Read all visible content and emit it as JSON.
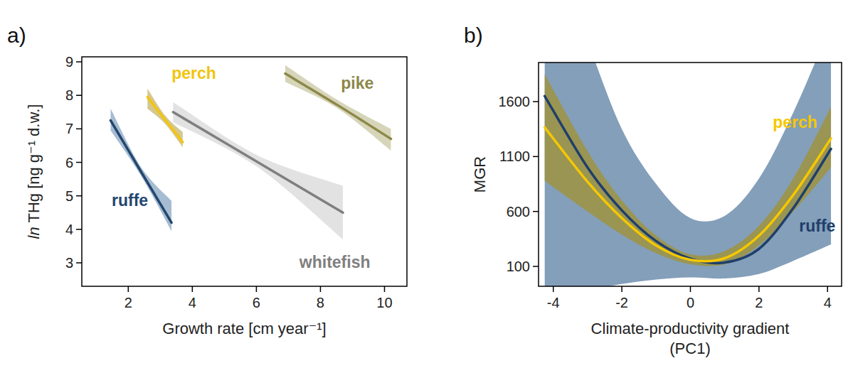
{
  "chart_data": [
    {
      "type": "line",
      "panel_label": "a)",
      "xlabel": "Growth rate [cm year⁻¹]",
      "ylabel": "ln THg [ng g⁻¹ d.w.]",
      "xlim": [
        0.55,
        10.7
      ],
      "ylim": [
        2.3,
        9.15
      ],
      "xticks": [
        2,
        4,
        6,
        8,
        10
      ],
      "yticks": [
        3,
        4,
        5,
        6,
        7,
        8,
        9
      ],
      "grid": false,
      "series": [
        {
          "name": "ruffe",
          "color": "#23466e",
          "band_color": "#6a8fb4",
          "x": [
            1.45,
            2.4,
            3.35
          ],
          "values": [
            7.25,
            5.72,
            4.2
          ],
          "lower": [
            6.95,
            5.6,
            3.95
          ],
          "upper": [
            7.6,
            5.85,
            4.85
          ],
          "label_x": 2.05,
          "label_y": 4.7
        },
        {
          "name": "perch",
          "color": "#f2c40f",
          "band_color": "#b8a445",
          "x": [
            2.6,
            3.15,
            3.7
          ],
          "values": [
            7.95,
            7.27,
            6.6
          ],
          "lower": [
            7.6,
            7.15,
            6.45
          ],
          "upper": [
            8.2,
            7.4,
            6.9
          ],
          "label_x": 4.05,
          "label_y": 8.5
        },
        {
          "name": "whitefish",
          "color": "#7f7f7f",
          "band_color": "#cfcfcf",
          "x": [
            3.4,
            6.05,
            8.7
          ],
          "values": [
            7.5,
            6.0,
            4.5
          ],
          "lower": [
            7.2,
            5.85,
            3.7
          ],
          "upper": [
            7.8,
            6.2,
            5.3
          ],
          "label_x": 8.45,
          "label_y": 2.85
        },
        {
          "name": "pike",
          "color": "#8c8849",
          "band_color": "#bdb98a",
          "x": [
            6.9,
            8.55,
            10.2
          ],
          "values": [
            8.65,
            7.7,
            6.7
          ],
          "lower": [
            8.4,
            7.6,
            6.35
          ],
          "upper": [
            8.9,
            7.85,
            7.0
          ],
          "label_x": 9.15,
          "label_y": 8.2
        }
      ]
    },
    {
      "type": "line",
      "panel_label": "b)",
      "xlabel": "Climate-productivity gradient (PC1)",
      "ylabel": "MGR",
      "xlim": [
        -4.43,
        4.41
      ],
      "ylim": [
        -81,
        1956
      ],
      "xticks": [
        -4,
        -2,
        0,
        2,
        4
      ],
      "yticks": [
        100,
        600,
        1100,
        1600
      ],
      "grid": false,
      "series": [
        {
          "name": "ruffe",
          "color": "#1f3f6b",
          "band_color": "#6f8eae",
          "x": [
            -4.25,
            -3,
            -2,
            -1,
            0,
            1,
            2,
            3,
            4.1
          ],
          "values": [
            1650,
            1000,
            610,
            330,
            170,
            135,
            260,
            630,
            1170
          ],
          "lower": [
            -200,
            -120,
            -60,
            -20,
            0,
            -10,
            30,
            150,
            300
          ],
          "upper": [
            3200,
            2150,
            1350,
            850,
            540,
            560,
            900,
            1500,
            2300
          ],
          "label_x": 3.7,
          "label_y": 420
        },
        {
          "name": "perch",
          "color": "#f5c800",
          "band_color": "#9e9340",
          "x": [
            -4.25,
            -3,
            -2,
            -1,
            0,
            1,
            2,
            3,
            4.1
          ],
          "values": [
            1365,
            870,
            540,
            290,
            160,
            175,
            380,
            750,
            1265
          ],
          "lower": [
            880,
            600,
            390,
            220,
            120,
            120,
            290,
            600,
            1000
          ],
          "upper": [
            1850,
            1150,
            700,
            380,
            210,
            240,
            470,
            900,
            1550
          ],
          "label_x": 3.05,
          "label_y": 1360
        }
      ]
    }
  ]
}
